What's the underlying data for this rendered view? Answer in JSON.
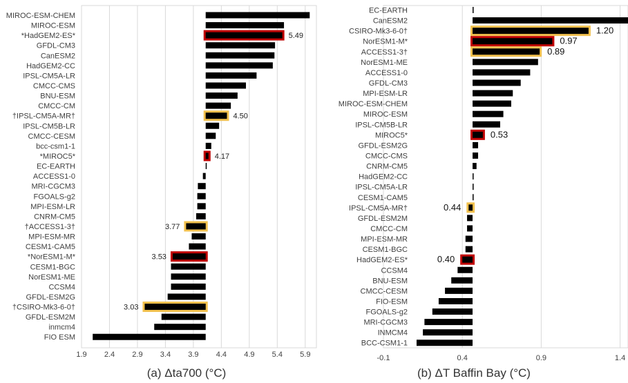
{
  "chart_data": [
    {
      "type": "bar",
      "orientation": "horizontal",
      "caption": "(a) Δta700  (°C)",
      "xlim": [
        1.9,
        6.1
      ],
      "xticks": [
        "1.9",
        "2.4",
        "2.9",
        "3.4",
        "3.9",
        "4.4",
        "4.9",
        "5.4",
        "5.9"
      ],
      "grid": true,
      "highlight_colors": {
        "red": "#c00000",
        "gold": "#f2c14e"
      },
      "bar_color": "#000000",
      "categories": [
        "MIROC-ESM-CHEM",
        "MIROC-ESM",
        "*HadGEM2-ES*",
        "GFDL-CM3",
        "CanESM2",
        "HadGEM2-CC",
        "IPSL-CM5A-LR",
        "CMCC-CMS",
        "BNU-ESM",
        "CMCC-CM",
        "†IPSL-CM5A-MR†",
        "IPSL-CM5B-LR",
        "CMCC-CESM",
        "bcc-csm1-1",
        "*MIROC5*",
        "EC-EARTH",
        "ACCESS1-0",
        "MRI-CGCM3",
        "FGOALS-g2",
        "MPI-ESM-LR",
        "CNRM-CM5",
        "†ACCESS1-3†",
        "MPI-ESM-MR",
        "CESM1-CAM5",
        "*NorESM1-M*",
        "CESM1-BGC",
        "NorESM1-ME",
        "CCSM4",
        "GFDL-ESM2G",
        "†CSIRO-Mk3-6-0†",
        "GFDL-ESM2M",
        "inmcm4",
        "FIO ESM"
      ],
      "values": [
        5.98,
        5.52,
        5.49,
        5.36,
        5.35,
        5.32,
        5.03,
        4.84,
        4.69,
        4.57,
        4.5,
        4.36,
        4.3,
        4.22,
        4.17,
        4.12,
        4.07,
        3.98,
        3.97,
        3.97,
        3.95,
        3.77,
        3.87,
        3.82,
        3.53,
        3.5,
        3.5,
        3.5,
        3.44,
        3.03,
        3.33,
        3.2,
        2.1
      ],
      "highlight": [
        "",
        "",
        "red",
        "",
        "",
        "",
        "",
        "",
        "",
        "",
        "gold",
        "",
        "",
        "",
        "red",
        "",
        "",
        "",
        "",
        "",
        "",
        "gold",
        "",
        "",
        "red",
        "",
        "",
        "",
        "",
        "gold",
        "",
        "",
        ""
      ],
      "labels": [
        "",
        "",
        "5.49",
        "",
        "",
        "",
        "",
        "",
        "",
        "",
        "4.50",
        "",
        "",
        "",
        "4.17",
        "",
        "",
        "",
        "",
        "",
        "",
        "3.77",
        "",
        "",
        "3.53",
        "",
        "",
        "",
        "",
        "3.03",
        "",
        "",
        ""
      ]
    },
    {
      "type": "bar",
      "orientation": "horizontal",
      "caption": "(b)  ΔT Baffin Bay (°C)",
      "xlim": [
        -0.1,
        1.45
      ],
      "xticks": [
        "-0.1",
        "0.4",
        "0.9",
        "1.4"
      ],
      "grid": true,
      "highlight_colors": {
        "red": "#c00000",
        "gold": "#f2c14e"
      },
      "bar_color": "#000000",
      "categories": [
        "EC-EARTH",
        "CanESM2",
        "CSIRO-Mk3-6-0†",
        "NorESM1-M*",
        "ACCESS1-3†",
        "NorESM1-ME",
        "ACCESS1-0",
        "GFDL-CM3",
        "MPI-ESM-LR",
        "MIROC-ESM-CHEM",
        "MIROC-ESM",
        "IPSL-CM5B-LR",
        "MIROC5*",
        "GFDL-ESM2G",
        "CMCC-CMS",
        "CNRM-CM5",
        "HadGEM2-CC",
        "IPSL-CM5A-LR",
        "CESM1-CAM5",
        "IPSL-CM5A-MR†",
        "GFDL-ESM2M",
        "CMCC-CM",
        "MPI-ESM-MR",
        "CESM1-BGC",
        "HadGEM2-ES*",
        "CCSM4",
        "BNU-ESM",
        "CMCC-CESM",
        "FIO-ESM",
        "FGOALS-g2",
        "MRI-CGCM3",
        "INMCM4",
        "BCC-CSM1-1"
      ],
      "values": [
        0.47,
        1.47,
        1.2,
        0.97,
        0.89,
        0.88,
        0.83,
        0.77,
        0.72,
        0.71,
        0.66,
        0.64,
        0.53,
        0.5,
        0.5,
        0.49,
        0.47,
        0.47,
        0.47,
        0.44,
        0.43,
        0.43,
        0.42,
        0.42,
        0.4,
        0.37,
        0.33,
        0.29,
        0.25,
        0.21,
        0.16,
        0.15,
        0.11
      ],
      "highlight": [
        "",
        "",
        "gold",
        "red",
        "gold",
        "",
        "",
        "",
        "",
        "",
        "",
        "",
        "red",
        "",
        "",
        "",
        "",
        "",
        "",
        "gold",
        "",
        "",
        "",
        "",
        "red",
        "",
        "",
        "",
        "",
        "",
        "",
        "",
        ""
      ],
      "labels": [
        "",
        "",
        "1.20",
        "0.97",
        "0.89",
        "",
        "",
        "",
        "",
        "",
        "",
        "",
        "0.53",
        "",
        "",
        "",
        "",
        "",
        "",
        "0.44",
        "",
        "",
        "",
        "",
        "0.40",
        "",
        "",
        "",
        "",
        "",
        "",
        "",
        ""
      ]
    }
  ]
}
